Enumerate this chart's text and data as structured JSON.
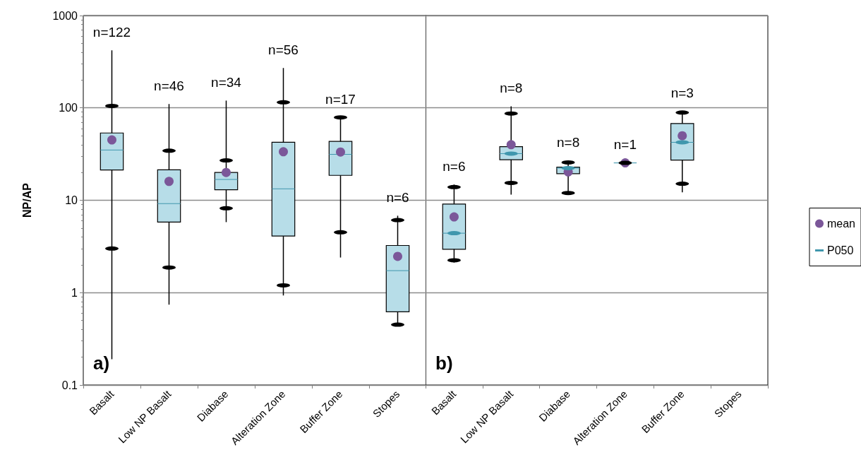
{
  "chart_data": [
    {
      "type": "box",
      "ylabel": "NP/AP",
      "log": "y",
      "ylim": [
        0.1,
        1000
      ],
      "yticks": [
        0.1,
        1,
        10,
        100,
        1000
      ],
      "grid": "y",
      "categories": [
        "Basalt",
        "Low NP Basalt",
        "Diabase",
        "Alteration Zone",
        "Buffer Zone",
        "Stopes"
      ],
      "series": [
        {
          "type": "box",
          "color": "#b7dde8",
          "boxes": [
            {
              "low": 0.19,
              "q1": 21.3,
              "median": 35,
              "q3": 53.5,
              "high": 420
            },
            {
              "low": 0.74,
              "q1": 5.8,
              "median": 9.2,
              "q3": 21.4,
              "high": 110
            },
            {
              "low": 5.8,
              "q1": 13,
              "median": 16.8,
              "q3": 20,
              "high": 120
            },
            {
              "low": 0.93,
              "q1": 4.1,
              "median": 13.3,
              "q3": 42.4,
              "high": 270
            },
            {
              "low": 2.4,
              "q1": 18.6,
              "median": 31.4,
              "q3": 43.4,
              "high": 79
            },
            {
              "low": 0.45,
              "q1": 0.62,
              "median": 1.73,
              "q3": 3.24,
              "high": 6.8
            }
          ]
        },
        {
          "type": "scatter",
          "color": "#7b5799",
          "marker": "circle",
          "values": [
            45,
            16,
            20,
            33.5,
            33.3,
            2.47
          ]
        },
        {
          "type": "scatter",
          "color": "#000000",
          "values": [
            105,
            34.4,
            27,
            115,
            79,
            6.1
          ]
        },
        {
          "type": "scatter",
          "color": "#000000",
          "values": [
            3,
            1.87,
            8.2,
            1.2,
            4.5,
            0.45
          ]
        }
      ],
      "annotations": [
        "n=122",
        "n=46",
        "n=34",
        "n=56",
        "n=17",
        "n=6",
        "a)"
      ]
    },
    {
      "type": "box",
      "log": "y",
      "ylim": [
        0.1,
        1000
      ],
      "yticks": [
        0.1,
        1,
        10,
        100,
        1000
      ],
      "grid": "y",
      "tick_labels": "x",
      "legend": "right",
      "categories": [
        "Basalt",
        "Low NP Basalt",
        "Diabase",
        "Alteration Zone",
        "Buffer Zone",
        "Stopes"
      ],
      "series": [
        {
          "type": "box",
          "color": "#b7dde8",
          "boxes": [
            {
              "low": 2.12,
              "q1": 2.95,
              "median": 4.4,
              "q3": 9.1,
              "high": 14.8
            },
            {
              "low": 11.5,
              "q1": 27.5,
              "median": 32,
              "q3": 38,
              "high": 104
            },
            {
              "low": 12,
              "q1": 19.4,
              "median": 22.3,
              "q3": 22.8,
              "high": 26.6
            },
            {
              "low": 25.4,
              "q1": 25.4,
              "median": 25.4,
              "q3": 25.4,
              "high": 25.4
            },
            {
              "low": 12.2,
              "q1": 27.2,
              "median": 42.4,
              "q3": 67.8,
              "high": 92.5
            },
            null
          ]
        },
        {
          "type": "scatter",
          "name": "mean",
          "color": "#7b5799",
          "marker": "circle",
          "values": [
            6.6,
            40,
            20.3,
            25.4,
            49.9,
            null
          ]
        },
        {
          "type": "scatter",
          "name": "P050",
          "color": "#4097ad",
          "values": [
            4.4,
            32,
            22.3,
            null,
            42.4,
            null
          ]
        },
        {
          "type": "scatter",
          "color": "#000000",
          "values": [
            13.9,
            87,
            25.7,
            25.4,
            89,
            null
          ]
        },
        {
          "type": "scatter",
          "color": "#000000",
          "values": [
            2.24,
            15.4,
            12,
            null,
            15.1,
            null
          ]
        }
      ],
      "annotations": [
        "n=6",
        "n=8",
        "n=8",
        "n=1",
        "n=3",
        "b)"
      ]
    }
  ]
}
